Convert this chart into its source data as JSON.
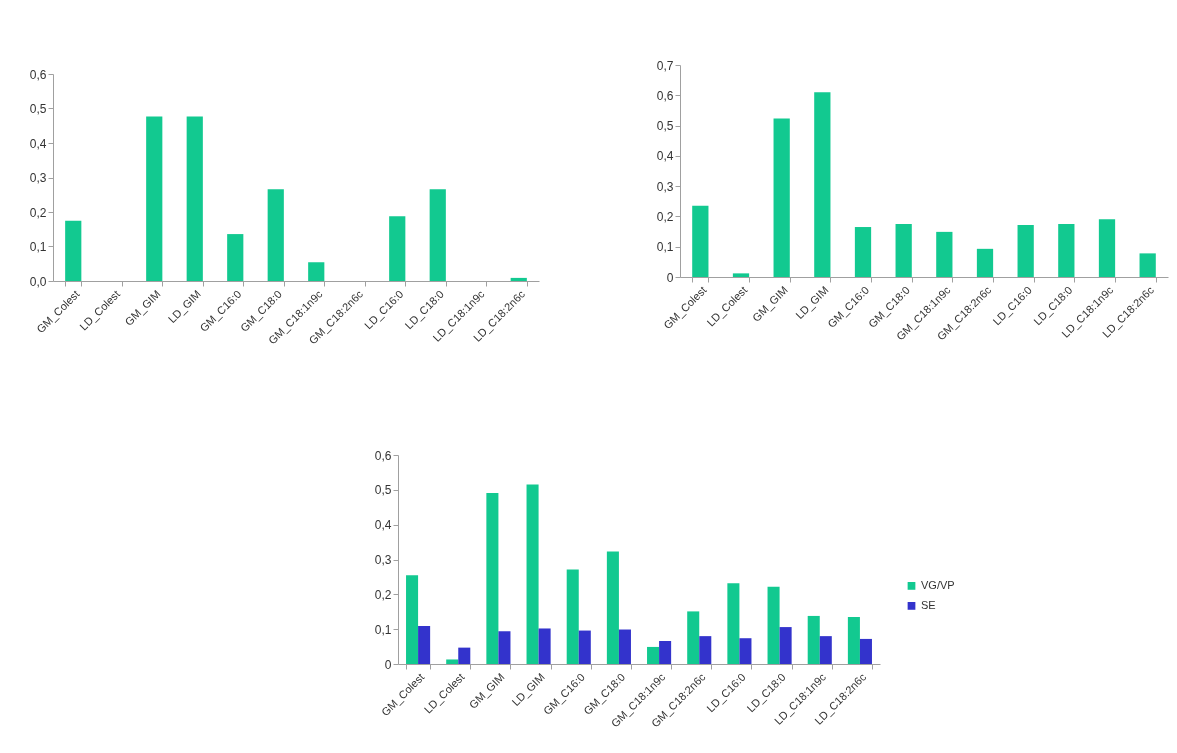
{
  "chart_data": [
    {
      "type": "bar",
      "categories": [
        "GM_Colest",
        "LD_Colest",
        "GM_GIM",
        "LD_GIM",
        "GM_C16:0",
        "GM_C18:0",
        "GM_C18:1n9c",
        "GM_C18:2n6c",
        "LD_C16:0",
        "LD_C18:0",
        "LD_C18:1n9c",
        "LD_C18:2n6c"
      ],
      "values": [
        0.175,
        0,
        0.477,
        0.477,
        0.136,
        0.266,
        0.054,
        0,
        0.188,
        0.266,
        0,
        0.009
      ],
      "color": "#12c990",
      "ylim": [
        0,
        0.6
      ],
      "yticks": [
        {
          "value": 0,
          "label": "0,0"
        },
        {
          "value": 0.1,
          "label": "0,1"
        },
        {
          "value": 0.2,
          "label": "0,2"
        },
        {
          "value": 0.3,
          "label": "0,3"
        },
        {
          "value": 0.4,
          "label": "0,4"
        },
        {
          "value": 0.5,
          "label": "0,5"
        },
        {
          "value": 0.6,
          "label": "0,6"
        }
      ]
    },
    {
      "type": "bar",
      "categories": [
        "GM_Colest",
        "LD_Colest",
        "GM_GIM",
        "LD_GIM",
        "GM_C16:0",
        "GM_C18:0",
        "GM_C18:1n9c",
        "GM_C18:2n6c",
        "LD_C16:0",
        "LD_C18:0",
        "LD_C18:1n9c",
        "LD_C18:2n6c"
      ],
      "values": [
        0.235,
        0.012,
        0.523,
        0.61,
        0.165,
        0.175,
        0.149,
        0.093,
        0.172,
        0.175,
        0.191,
        0.078
      ],
      "color": "#12c990",
      "ylim": [
        0,
        0.7
      ],
      "yticks": [
        0,
        {
          "value": 0.1,
          "label": "0,1"
        },
        {
          "value": 0.2,
          "label": "0,2"
        },
        {
          "value": 0.3,
          "label": "0,3"
        },
        {
          "value": 0.4,
          "label": "0,4"
        },
        {
          "value": 0.5,
          "label": "0,5"
        },
        {
          "value": 0.6,
          "label": "0,6"
        },
        {
          "value": 0.7,
          "label": "0,7"
        }
      ]
    },
    {
      "type": "bar",
      "categories": [
        "GM_Colest",
        "LD_Colest",
        "GM_GIM",
        "LD_GIM",
        "GM_C16:0",
        "GM_C18:0",
        "GM_C18:1n9c",
        "GM_C18:2n6c",
        "LD_C16:0",
        "LD_C18:0",
        "LD_C18:1n9c",
        "LD_C18:2n6c"
      ],
      "series": [
        {
          "name": "VG/VP",
          "color": "#12c990",
          "values": [
            0.255,
            0.013,
            0.491,
            0.515,
            0.271,
            0.323,
            0.049,
            0.151,
            0.232,
            0.222,
            0.138,
            0.135
          ]
        },
        {
          "name": "SE",
          "color": "#3333cc",
          "values": [
            0.109,
            0.047,
            0.094,
            0.102,
            0.096,
            0.099,
            0.066,
            0.08,
            0.074,
            0.106,
            0.08,
            0.072
          ]
        }
      ],
      "ylim": [
        0,
        0.6
      ],
      "yticks": [
        0,
        {
          "value": 0.1,
          "label": "0,1"
        },
        {
          "value": 0.2,
          "label": "0,2"
        },
        {
          "value": 0.3,
          "label": "0,3"
        },
        {
          "value": 0.4,
          "label": "0,4"
        },
        {
          "value": 0.5,
          "label": "0,5"
        },
        {
          "value": 0.6,
          "label": "0,6"
        }
      ],
      "legend": "right"
    }
  ]
}
